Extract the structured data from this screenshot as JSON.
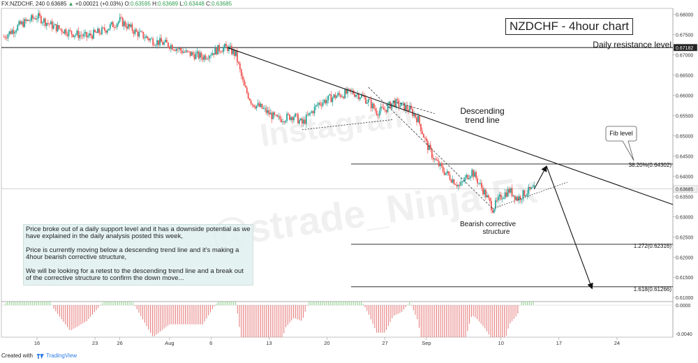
{
  "header": {
    "symbol": "FX:NZDCHF, 240",
    "open": "0.63685",
    "change": "+0.00021 (+0.03%)",
    "open_label": "O:",
    "open_value": "0.63595",
    "high_label": "H:",
    "high_value": "0.63689",
    "low_label": "L:",
    "low_value": "0.63448",
    "close_label": "C:",
    "close_value": "0.63685"
  },
  "chart_title": "NZDCHF - 4hour chart",
  "annotations": {
    "resistance": "Daily resistance level",
    "trend_line": [
      "Descending",
      "trend line"
    ],
    "corrective": [
      "Bearish corrective",
      "structure"
    ],
    "fib_callout": "Fib level",
    "fib_382": "38.20%(0.64302)",
    "fib_1272": "1.272(0.62316)",
    "fib_1618": "1.618(0.61266)"
  },
  "note_paragraphs": [
    "Price broke out of a daily support level and it has a downside potential as we have explained in the daily analysis posted this week,",
    "Price is currently moving below a descending trend line and it's making a 4hour bearish corrective structure,",
    "We will be looking for a retest to the descending trend line and a break out of the corrective structure to confirm the down move..."
  ],
  "watermarks": [
    "Instagram",
    "@strade_Ninja Fx"
  ],
  "footer": {
    "created": "Created with",
    "brand": "TradingView"
  },
  "colors": {
    "up": "#26a69a",
    "down": "#ef5350",
    "osc_up": "#8bd18b",
    "osc_down": "#e57373",
    "line": "#222222"
  },
  "chart_data": {
    "type": "candlestick",
    "y_axis_ticks": [
      "0.68000",
      "0.67500",
      "0.67182",
      "0.67000",
      "0.66500",
      "0.66000",
      "0.65500",
      "0.65000",
      "0.64500",
      "0.64000",
      "0.63685",
      "0.63500",
      "0.63000",
      "0.62500",
      "0.62000",
      "0.61500",
      "0.61000"
    ],
    "ylim": [
      0.609,
      0.6815
    ],
    "x_axis_ticks": [
      "16",
      "23",
      "26",
      "Aug",
      "6",
      "13",
      "20",
      "27",
      "Sep",
      "10",
      "17",
      "24"
    ],
    "highlighted_ticks": {
      "resistance": "0.67182",
      "last": "0.63685"
    },
    "levels": {
      "daily_resistance": 0.67182,
      "fib_382": 0.64302,
      "fib_1272": 0.62316,
      "fib_1618": 0.61266,
      "last_price": 0.63685
    },
    "price_path": [
      {
        "day": 12,
        "price": 0.6745
      },
      {
        "day": 14,
        "price": 0.6775
      },
      {
        "day": 16,
        "price": 0.6795
      },
      {
        "day": 18,
        "price": 0.677
      },
      {
        "day": 20,
        "price": 0.6755
      },
      {
        "day": 22,
        "price": 0.6745
      },
      {
        "day": 24,
        "price": 0.676
      },
      {
        "day": 26,
        "price": 0.6785
      },
      {
        "day": 28,
        "price": 0.6755
      },
      {
        "day": 30,
        "price": 0.6735
      },
      {
        "day": 32,
        "price": 0.6725
      },
      {
        "day": 34,
        "price": 0.6705
      },
      {
        "day": 36,
        "price": 0.6695
      },
      {
        "day": 38,
        "price": 0.6715
      },
      {
        "day": 39,
        "price": 0.6718
      },
      {
        "day": 40,
        "price": 0.67
      },
      {
        "day": 41,
        "price": 0.662
      },
      {
        "day": 42,
        "price": 0.658
      },
      {
        "day": 43,
        "price": 0.657
      },
      {
        "day": 45,
        "price": 0.654
      },
      {
        "day": 47,
        "price": 0.655
      },
      {
        "day": 48,
        "price": 0.653
      },
      {
        "day": 50,
        "price": 0.658
      },
      {
        "day": 52,
        "price": 0.6598
      },
      {
        "day": 54,
        "price": 0.6608
      },
      {
        "day": 55,
        "price": 0.66
      },
      {
        "day": 56,
        "price": 0.6585
      },
      {
        "day": 57,
        "price": 0.656
      },
      {
        "day": 58,
        "price": 0.6565
      },
      {
        "day": 59,
        "price": 0.6583
      },
      {
        "day": 61,
        "price": 0.6565
      },
      {
        "day": 62,
        "price": 0.654
      },
      {
        "day": 63,
        "price": 0.648
      },
      {
        "day": 64,
        "price": 0.644
      },
      {
        "day": 65,
        "price": 0.6415
      },
      {
        "day": 66,
        "price": 0.6395
      },
      {
        "day": 67,
        "price": 0.6375
      },
      {
        "day": 68,
        "price": 0.6402
      },
      {
        "day": 68.5,
        "price": 0.6412
      },
      {
        "day": 69,
        "price": 0.6395
      },
      {
        "day": 70,
        "price": 0.636
      },
      {
        "day": 70.5,
        "price": 0.634
      },
      {
        "day": 71,
        "price": 0.632
      },
      {
        "day": 72,
        "price": 0.635
      },
      {
        "day": 73,
        "price": 0.6365
      },
      {
        "day": 74,
        "price": 0.6345
      },
      {
        "day": 75,
        "price": 0.636
      },
      {
        "day": 76,
        "price": 0.6368
      }
    ],
    "candles_day_range": [
      12,
      76
    ],
    "oscillator": {
      "ylim": [
        -0.0045,
        0.0005
      ],
      "y_axis_ticks": [
        "0.0000",
        "-0.0040"
      ]
    },
    "projection_path": [
      {
        "day": 76,
        "price": 0.6368
      },
      {
        "day": 77.5,
        "price": 0.6425
      },
      {
        "day": 83,
        "price": 0.6122
      }
    ]
  }
}
